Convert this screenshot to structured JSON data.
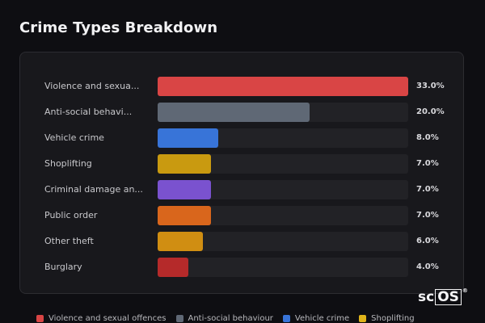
{
  "chart_data": {
    "type": "bar",
    "orientation": "horizontal",
    "title": "Crime Types Breakdown",
    "xlim": [
      0,
      33
    ],
    "categories": [
      "Violence and sexua...",
      "Anti-social behavi...",
      "Vehicle crime",
      "Shoplifting",
      "Criminal damage an...",
      "Public order",
      "Other theft",
      "Burglary"
    ],
    "values": [
      33.0,
      20.0,
      8.0,
      7.0,
      7.0,
      7.0,
      6.0,
      4.0
    ],
    "value_labels": [
      "33.0%",
      "20.0%",
      "8.0%",
      "7.0%",
      "7.0%",
      "7.0%",
      "6.0%",
      "4.0%"
    ],
    "colors": [
      "#d94545",
      "#5f6875",
      "#3874d8",
      "#c99a10",
      "#7a52cf",
      "#d9661c",
      "#d08e12",
      "#b52a2a"
    ],
    "legend": [
      {
        "label": "Violence and sexual offences",
        "color": "#d94545"
      },
      {
        "label": "Anti-social behaviour",
        "color": "#5f6875"
      },
      {
        "label": "Vehicle crime",
        "color": "#3874d8"
      },
      {
        "label": "Shoplifting",
        "color": "#e0b41a"
      }
    ],
    "legend_position": "bottom"
  },
  "branding": {
    "logo_prefix": "sc",
    "logo_boxed": "OS",
    "logo_mark": "®"
  }
}
